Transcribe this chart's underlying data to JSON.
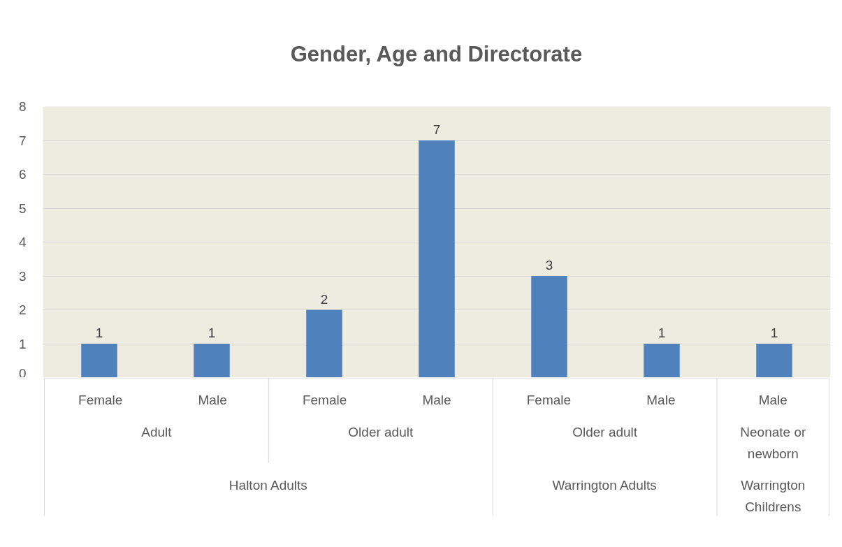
{
  "chart_data": {
    "type": "bar",
    "title": "Gender, Age and Directorate",
    "categories": [
      "Female",
      "Male",
      "Female",
      "Male",
      "Female",
      "Male",
      "Male"
    ],
    "values": [
      1,
      1,
      2,
      7,
      3,
      1,
      1
    ],
    "color": "#4f81bd",
    "ylim": [
      0,
      8
    ],
    "yticks": [
      0,
      1,
      2,
      3,
      4,
      5,
      6,
      7,
      8
    ],
    "grid": "y",
    "data_labels": true,
    "annotations": [
      "Adult",
      "Older adult",
      "Older adult",
      "Neonate or newborn",
      "Halton Adults",
      "Warrington Adults",
      "Warrington Childrens"
    ]
  }
}
